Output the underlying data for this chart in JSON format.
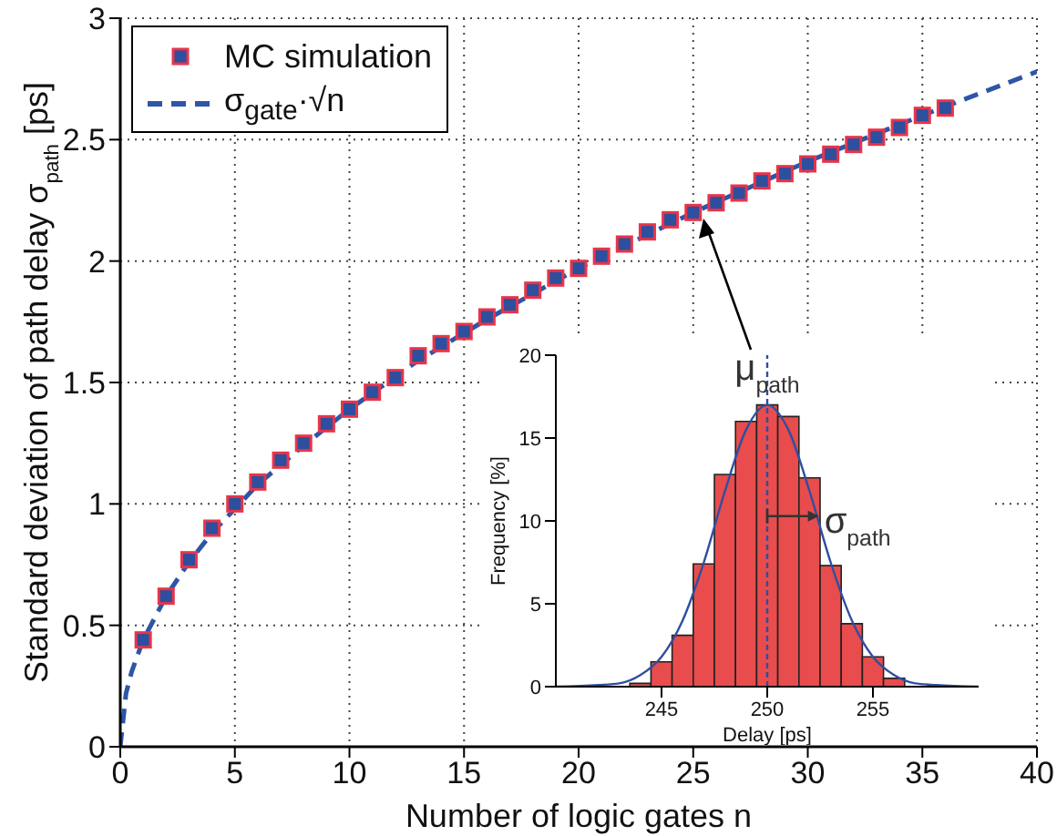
{
  "chart_data": [
    {
      "type": "scatter",
      "xlabel": "Number of logic gates n",
      "ylabel": "Standard deviation of path delay  σ$_{path}$ [ps]",
      "xlim": [
        0,
        40
      ],
      "xticks": [
        0,
        5,
        10,
        15,
        20,
        25,
        30,
        35,
        40
      ],
      "ylim": [
        0,
        3
      ],
      "yticks": [
        0,
        0.5,
        1,
        1.5,
        2,
        2.5,
        3
      ],
      "grid": true,
      "legend": "top left",
      "series": [
        {
          "name": "MC simulation",
          "type": "scatter",
          "marker": "square",
          "color": "#2d4f9e",
          "x": [
            1,
            2,
            3,
            4,
            5,
            6,
            7,
            8,
            9,
            10,
            11,
            12,
            13,
            14,
            15,
            16,
            17,
            18,
            19,
            20,
            21,
            22,
            23,
            24,
            25,
            26,
            27,
            28,
            29,
            30,
            31,
            32,
            33,
            34,
            35,
            36
          ],
          "values": [
            0.44,
            0.62,
            0.77,
            0.9,
            1.0,
            1.09,
            1.18,
            1.25,
            1.33,
            1.39,
            1.46,
            1.52,
            1.61,
            1.66,
            1.71,
            1.77,
            1.82,
            1.88,
            1.93,
            1.97,
            2.02,
            2.07,
            2.12,
            2.17,
            2.2,
            2.24,
            2.28,
            2.33,
            2.36,
            2.4,
            2.44,
            2.48,
            2.51,
            2.55,
            2.6,
            2.63
          ]
        },
        {
          "name": "σ$_{gate}$·√n",
          "type": "line",
          "line_style": "dashed",
          "marker": "none",
          "color": "#2e55a6",
          "x": [
            0,
            0.25,
            0.5,
            1,
            2,
            3,
            4,
            6,
            8,
            10,
            13,
            16,
            20,
            25,
            30,
            35,
            40
          ],
          "values": [
            0,
            0.22,
            0.31,
            0.44,
            0.62,
            0.76,
            0.88,
            1.08,
            1.24,
            1.39,
            1.59,
            1.76,
            1.97,
            2.2,
            2.41,
            2.6,
            2.78
          ]
        }
      ]
    },
    {
      "type": "histogram",
      "xlabel": "Delay [ps]",
      "ylabel": "Frequency [%]",
      "bins": [
        243.5,
        244.5,
        245.5,
        246.5,
        247.5,
        248.5,
        249.5,
        250.5,
        251.5,
        252.5,
        253.5,
        254.5,
        255.5,
        256.5
      ],
      "values": [
        0.2,
        1.5,
        3.1,
        7.4,
        12.8,
        16,
        17,
        16.3,
        12.6,
        7.3,
        3.8,
        1.8,
        0.5
      ],
      "color": "#e84c4c",
      "xlim": [
        240,
        260
      ],
      "xticks": [
        245,
        250,
        255
      ],
      "ylim": [
        0,
        20
      ],
      "yticks": [
        0,
        5,
        10,
        15,
        20
      ],
      "series": [
        {
          "type": "line",
          "color": "#2f4ea0",
          "x": [
            240,
            242,
            243,
            244,
            245,
            246,
            247,
            248,
            249,
            250,
            251,
            252,
            253,
            254,
            255,
            256,
            257,
            258,
            260
          ],
          "values": [
            0,
            0.1,
            0.2,
            0.7,
            1.8,
            4,
            7.5,
            11.8,
            15.5,
            17,
            15.5,
            11.8,
            7.5,
            4,
            1.8,
            0.7,
            0.2,
            0.1,
            0
          ]
        }
      ],
      "ref_lines": [
        {
          "axis": "x",
          "value": 250,
          "color": "#2f4ea0",
          "line_style": "dashed"
        }
      ],
      "annotations": [
        {
          "text": "μ$_{path}$",
          "x": 250,
          "y": 18.5
        },
        {
          "text": "σ$_{path}$",
          "x": 252.7,
          "y": 9.3
        }
      ]
    }
  ]
}
